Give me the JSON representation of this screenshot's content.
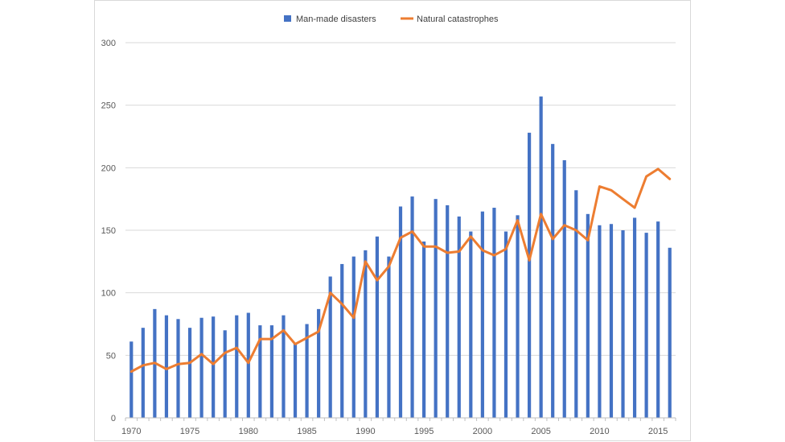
{
  "chart_data": {
    "type": "bar",
    "title": "",
    "xlabel": "",
    "ylabel": "",
    "ylim": [
      0,
      300
    ],
    "yticks": [
      0,
      50,
      100,
      150,
      200,
      250,
      300
    ],
    "xtick_labels": [
      "1970",
      "1975",
      "1980",
      "1985",
      "1990",
      "1995",
      "2000",
      "2005",
      "2010",
      "2015"
    ],
    "grid": true,
    "legend_position": "top",
    "categories": [
      1970,
      1971,
      1972,
      1973,
      1974,
      1975,
      1976,
      1977,
      1978,
      1979,
      1980,
      1981,
      1982,
      1983,
      1984,
      1985,
      1986,
      1987,
      1988,
      1989,
      1990,
      1991,
      1992,
      1993,
      1994,
      1995,
      1996,
      1997,
      1998,
      1999,
      2000,
      2001,
      2002,
      2003,
      2004,
      2005,
      2006,
      2007,
      2008,
      2009,
      2010,
      2011,
      2012,
      2013,
      2014,
      2015,
      2016
    ],
    "series": [
      {
        "name": "Man-made disasters",
        "type": "bar",
        "color": "#4472c4",
        "values": [
          61,
          72,
          87,
          82,
          79,
          72,
          80,
          81,
          70,
          82,
          84,
          74,
          74,
          82,
          60,
          75,
          87,
          113,
          123,
          129,
          134,
          145,
          129,
          169,
          177,
          141,
          175,
          170,
          161,
          149,
          165,
          168,
          149,
          162,
          228,
          257,
          219,
          206,
          182,
          163,
          154,
          155,
          150,
          160,
          148,
          157,
          136
        ]
      },
      {
        "name": "Natural catastrophes",
        "type": "line",
        "color": "#ed7d31",
        "values": [
          37,
          42,
          44,
          39,
          43,
          44,
          51,
          43,
          52,
          56,
          44,
          63,
          63,
          70,
          59,
          64,
          69,
          100,
          91,
          80,
          125,
          110,
          121,
          144,
          149,
          137,
          137,
          132,
          133,
          145,
          134,
          130,
          135,
          158,
          126,
          163,
          143,
          154,
          150,
          142,
          185,
          182,
          175,
          168,
          193,
          199,
          191
        ]
      }
    ]
  }
}
